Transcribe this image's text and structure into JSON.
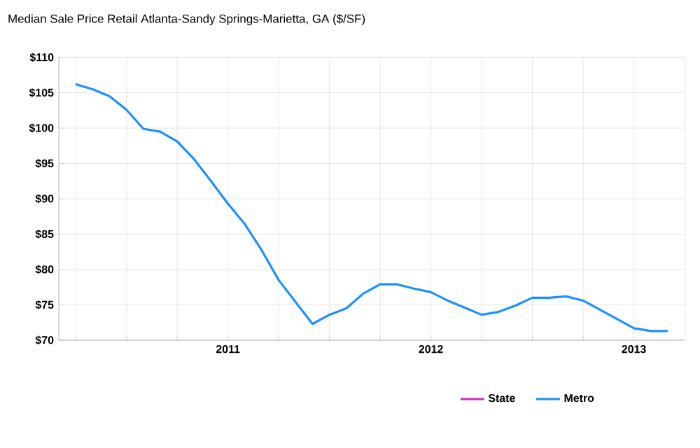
{
  "chart_data": {
    "type": "line",
    "title": "Median Sale Price Retail Atlanta-Sandy Springs-Marietta, GA ($/SF)",
    "x": [
      "2010-04",
      "2010-05",
      "2010-06",
      "2010-07",
      "2010-08",
      "2010-09",
      "2010-10",
      "2010-11",
      "2010-12",
      "2011-01",
      "2011-02",
      "2011-03",
      "2011-04",
      "2011-05",
      "2011-06",
      "2011-07",
      "2011-08",
      "2011-09",
      "2011-10",
      "2011-11",
      "2011-12",
      "2012-01",
      "2012-02",
      "2012-03",
      "2012-04",
      "2012-05",
      "2012-06",
      "2012-07",
      "2012-08",
      "2012-09",
      "2012-10",
      "2012-11",
      "2012-12",
      "2013-01",
      "2013-02",
      "2013-03"
    ],
    "series": [
      {
        "name": "State",
        "color": "#cc33cc",
        "values": [
          null,
          null,
          null,
          null,
          null,
          null,
          null,
          null,
          null,
          null,
          null,
          null,
          null,
          null,
          null,
          null,
          null,
          null,
          null,
          null,
          null,
          null,
          null,
          null,
          null,
          null,
          null,
          null,
          null,
          null,
          null,
          null,
          null,
          null,
          null,
          null
        ]
      },
      {
        "name": "Metro",
        "color": "#1e90ff",
        "values": [
          106.2,
          105.5,
          104.5,
          102.6,
          99.9,
          99.5,
          98.1,
          95.6,
          92.5,
          89.3,
          86.4,
          82.7,
          78.5,
          75.4,
          72.3,
          73.6,
          74.5,
          76.6,
          77.9,
          77.9,
          77.3,
          76.8,
          75.6,
          74.6,
          73.6,
          74.0,
          74.9,
          76.0,
          76.0,
          76.2,
          75.6,
          74.3,
          73.0,
          71.7,
          71.3,
          71.3
        ]
      }
    ],
    "xlim": [
      "2010-03",
      "2013-04"
    ],
    "xticks": [
      {
        "value": "2010-04",
        "label": null
      },
      {
        "value": "2010-07",
        "label": null
      },
      {
        "value": "2010-10",
        "label": null
      },
      "2011",
      {
        "value": "2011-04",
        "label": null
      },
      {
        "value": "2011-07",
        "label": null
      },
      {
        "value": "2011-10",
        "label": null
      },
      "2012",
      {
        "value": "2012-04",
        "label": null
      },
      {
        "value": "2012-07",
        "label": null
      },
      {
        "value": "2012-10",
        "label": null
      },
      "2013"
    ],
    "ylim": [
      70,
      110
    ],
    "yticks": [
      {
        "value": 70,
        "label": "$70"
      },
      {
        "value": 75,
        "label": "$75"
      },
      {
        "value": 80,
        "label": "$80"
      },
      {
        "value": 85,
        "label": "$85"
      },
      {
        "value": 90,
        "label": "$90"
      },
      {
        "value": 95,
        "label": "$95"
      },
      {
        "value": 100,
        "label": "$100"
      },
      {
        "value": 105,
        "label": "$105"
      },
      {
        "value": 110,
        "label": "$110"
      }
    ],
    "grid": true,
    "legend": "bottom",
    "marker": "none",
    "line_style": "solid"
  }
}
